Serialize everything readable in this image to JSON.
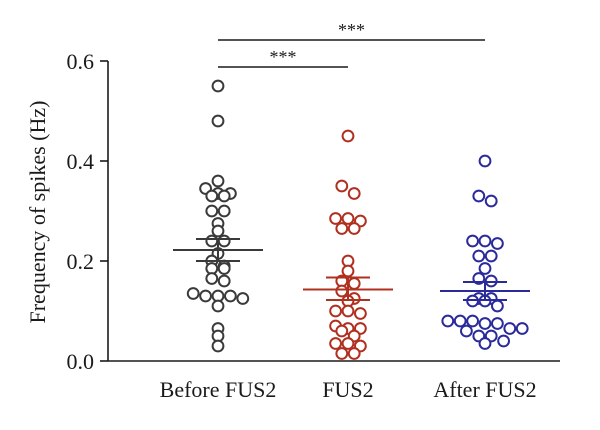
{
  "chart_data": {
    "type": "scatter",
    "ylabel": "Frequency of spikes (Hz)",
    "xlabel": "",
    "ylim": [
      0.0,
      0.6
    ],
    "yticks": [
      "0.0",
      "0.2",
      "0.4",
      "0.6"
    ],
    "ytick_values": [
      0.0,
      0.2,
      0.4,
      0.6
    ],
    "categories": [
      "Before FUS2",
      "FUS2",
      "After FUS2"
    ],
    "series": [
      {
        "color": "#3a3a3a",
        "mean": 0.222,
        "sem_upper": 0.244,
        "sem_lower": 0.2,
        "values": [
          0.55,
          0.48,
          0.36,
          0.345,
          0.335,
          0.335,
          0.33,
          0.33,
          0.3,
          0.3,
          0.275,
          0.26,
          0.24,
          0.24,
          0.215,
          0.2,
          0.19,
          0.185,
          0.185,
          0.165,
          0.16,
          0.135,
          0.13,
          0.13,
          0.13,
          0.125,
          0.11,
          0.065,
          0.05,
          0.03
        ]
      },
      {
        "color": "#b03020",
        "mean": 0.143,
        "sem_upper": 0.167,
        "sem_lower": 0.122,
        "values": [
          0.45,
          0.35,
          0.335,
          0.285,
          0.285,
          0.28,
          0.265,
          0.265,
          0.2,
          0.18,
          0.16,
          0.155,
          0.14,
          0.125,
          0.12,
          0.1,
          0.1,
          0.095,
          0.07,
          0.065,
          0.065,
          0.06,
          0.05,
          0.035,
          0.035,
          0.03,
          0.015,
          0.015
        ]
      },
      {
        "color": "#2a2a9a",
        "mean": 0.14,
        "sem_upper": 0.158,
        "sem_lower": 0.122,
        "values": [
          0.4,
          0.33,
          0.32,
          0.24,
          0.24,
          0.235,
          0.21,
          0.21,
          0.185,
          0.165,
          0.16,
          0.125,
          0.125,
          0.12,
          0.12,
          0.11,
          0.08,
          0.08,
          0.08,
          0.075,
          0.075,
          0.065,
          0.065,
          0.06,
          0.05,
          0.05,
          0.04,
          0.035
        ]
      }
    ],
    "significance": [
      {
        "from": 0,
        "to": 1,
        "label": "***"
      },
      {
        "from": 0,
        "to": 2,
        "label": "***"
      }
    ]
  }
}
